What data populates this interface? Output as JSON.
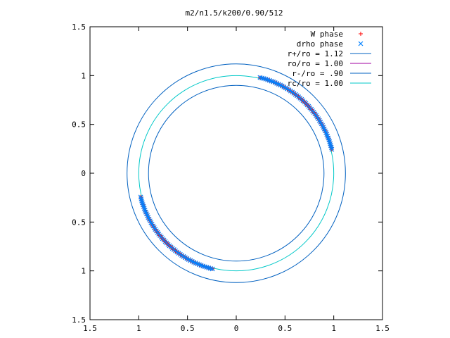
{
  "chart_data": {
    "type": "scatter",
    "title": "m2/n1.5/k200/0.90/512",
    "xlim": [
      -1.5,
      1.5
    ],
    "ylim": [
      -1.5,
      1.5
    ],
    "x_ticks": [
      -1.5,
      -1,
      -0.5,
      0,
      0.5,
      1,
      1.5
    ],
    "y_ticks": [
      -1.5,
      -1,
      -0.5,
      0,
      0.5,
      1,
      1.5
    ],
    "x_tick_labels": [
      "1.5",
      "1",
      "0.5",
      "0",
      "0.5",
      "1",
      "1.5"
    ],
    "y_tick_labels": [
      "1.5",
      "1",
      "0.5",
      "0",
      "0.5",
      "1",
      "1.5"
    ],
    "grid": false,
    "legend_position": "top-right",
    "series": [
      {
        "name": "W phase",
        "kind": "points",
        "marker": "+",
        "color": "#ff0000",
        "arcs": [
          {
            "r_from": 0.9,
            "r_to": 1.12,
            "theta_from": 76,
            "theta_to": 14
          },
          {
            "r_from": 0.9,
            "r_to": 1.12,
            "theta_from": 256,
            "theta_to": 194
          }
        ]
      },
      {
        "name": "drho phase",
        "kind": "points",
        "marker": "x",
        "color": "#0080ff",
        "arcs": [
          {
            "r_from": 0.9,
            "r_to": 1.12,
            "theta_from": 76,
            "theta_to": 14
          },
          {
            "r_from": 0.9,
            "r_to": 1.12,
            "theta_from": 256,
            "theta_to": 194
          }
        ]
      },
      {
        "name": "r+/ro = 1.12",
        "kind": "circle",
        "radius": 1.12,
        "color": "#0060c0"
      },
      {
        "name": "ro/ro = 1.00",
        "kind": "circle",
        "radius": 1.0,
        "color": "#a000a0",
        "hidden": true
      },
      {
        "name": "r-/ro = .90",
        "kind": "circle",
        "radius": 0.9,
        "color": "#0060c0"
      },
      {
        "name": "rc/ro = 1.00",
        "kind": "circle",
        "radius": 1.0,
        "color": "#00c8c8"
      }
    ]
  }
}
